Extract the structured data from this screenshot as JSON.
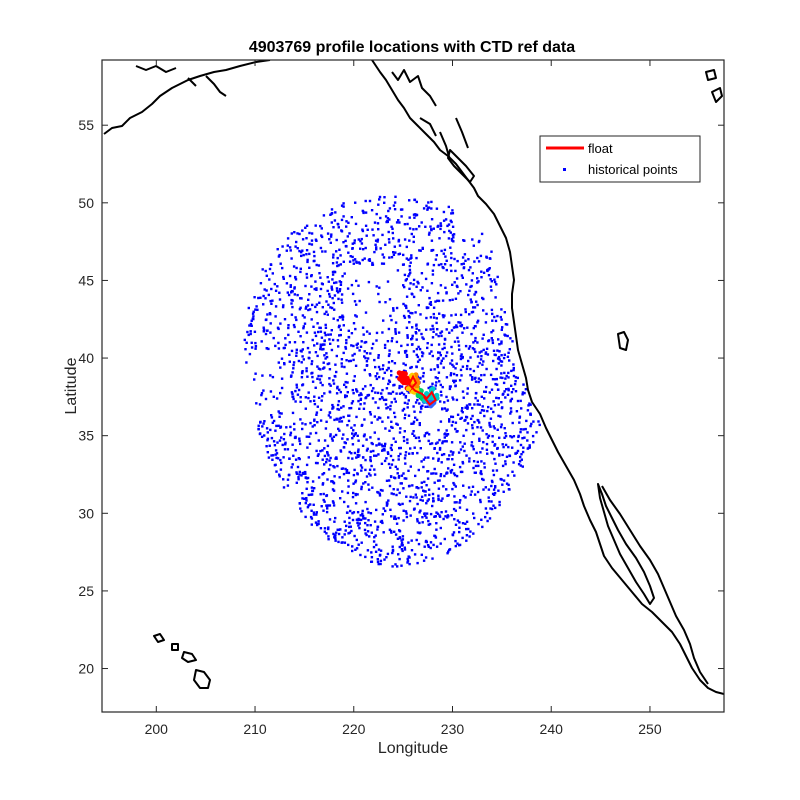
{
  "chart_data": {
    "type": "scatter",
    "title": "4903769 profile locations with CTD ref data",
    "xlabel": "Longitude",
    "ylabel": "Latitude",
    "xlim": [
      194.5,
      257.5
    ],
    "ylim": [
      17.2,
      59.2
    ],
    "xticks": [
      "200",
      "210",
      "220",
      "230",
      "240",
      "250"
    ],
    "xtick_values": [
      200,
      210,
      220,
      230,
      240,
      250
    ],
    "yticks": [
      "20",
      "25",
      "30",
      "35",
      "40",
      "45",
      "50",
      "55"
    ],
    "ytick_values": [
      20,
      25,
      30,
      35,
      40,
      45,
      50,
      55
    ],
    "grid": false,
    "legend": {
      "placement": "top-right",
      "entries": [
        "float",
        "historical points"
      ]
    },
    "series": [
      {
        "name": "float",
        "kind": "line",
        "color": "#ff0000",
        "x": [
          224.8,
          225.3,
          225.9,
          226.3,
          226.0,
          225.6,
          226.2,
          226.9,
          227.4,
          227.9,
          228.3,
          227.7,
          227.1
        ],
        "y": [
          38.9,
          38.5,
          38.1,
          38.4,
          38.8,
          38.3,
          37.9,
          37.7,
          37.4,
          37.8,
          37.3,
          37.0,
          37.5
        ]
      },
      {
        "name": "historical points",
        "kind": "scatter",
        "color": "#0000ff",
        "center": [
          224.5,
          38.5
        ],
        "radius_lat": 12.0,
        "density_note": "dense ring of historical CTD casts around float"
      }
    ],
    "float_profile_colors": [
      "#ff0000",
      "#ff8000",
      "#ffcc00",
      "#00cc66",
      "#00cccc",
      "#3366ff",
      "#cc0000"
    ],
    "coastline_color": "#000000"
  }
}
